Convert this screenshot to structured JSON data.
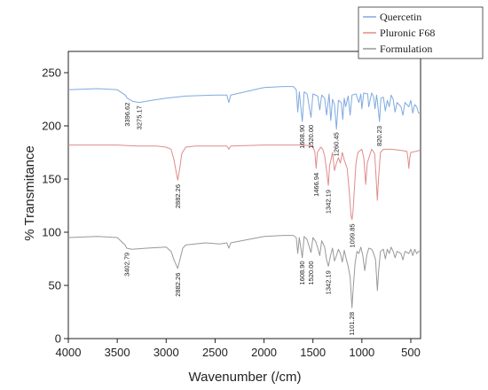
{
  "chart_data": {
    "type": "line",
    "title": "",
    "xlabel": "Wavenumber (/cm)",
    "ylabel": "% Transmitance",
    "xlim": [
      4000,
      400
    ],
    "ylim": [
      0,
      270
    ],
    "x_reversed": true,
    "grid": false,
    "legend_position": "top-right",
    "xticks": [
      4000,
      3500,
      3000,
      2500,
      2000,
      1500,
      1000,
      500
    ],
    "yticks": [
      0,
      50,
      100,
      150,
      200,
      250
    ],
    "series": [
      {
        "name": "Quercetin",
        "color": "#7faadf",
        "points": [
          [
            4000,
            234
          ],
          [
            3700,
            235
          ],
          [
            3500,
            234
          ],
          [
            3420,
            229
          ],
          [
            3396,
            226
          ],
          [
            3340,
            223
          ],
          [
            3275,
            222
          ],
          [
            3150,
            224
          ],
          [
            3000,
            226
          ],
          [
            2800,
            228
          ],
          [
            2500,
            229
          ],
          [
            2380,
            229
          ],
          [
            2360,
            222
          ],
          [
            2340,
            229
          ],
          [
            2000,
            236
          ],
          [
            1800,
            237
          ],
          [
            1700,
            237
          ],
          [
            1670,
            234
          ],
          [
            1655,
            213
          ],
          [
            1640,
            232
          ],
          [
            1609,
            204
          ],
          [
            1590,
            232
          ],
          [
            1560,
            230
          ],
          [
            1520,
            208
          ],
          [
            1500,
            230
          ],
          [
            1450,
            228
          ],
          [
            1430,
            215
          ],
          [
            1410,
            229
          ],
          [
            1380,
            226
          ],
          [
            1360,
            210
          ],
          [
            1335,
            230
          ],
          [
            1318,
            205
          ],
          [
            1300,
            225
          ],
          [
            1280,
            220
          ],
          [
            1260,
            197
          ],
          [
            1240,
            224
          ],
          [
            1210,
            222
          ],
          [
            1195,
            206
          ],
          [
            1180,
            226
          ],
          [
            1165,
            218
          ],
          [
            1140,
            228
          ],
          [
            1120,
            210
          ],
          [
            1100,
            229
          ],
          [
            1060,
            230
          ],
          [
            1030,
            222
          ],
          [
            1010,
            230
          ],
          [
            1000,
            216
          ],
          [
            980,
            231
          ],
          [
            940,
            230
          ],
          [
            930,
            218
          ],
          [
            900,
            231
          ],
          [
            880,
            227
          ],
          [
            865,
            216
          ],
          [
            850,
            229
          ],
          [
            840,
            222
          ],
          [
            820,
            204
          ],
          [
            805,
            226
          ],
          [
            780,
            227
          ],
          [
            760,
            214
          ],
          [
            740,
            224
          ],
          [
            720,
            218
          ],
          [
            700,
            229
          ],
          [
            680,
            225
          ],
          [
            660,
            213
          ],
          [
            640,
            222
          ],
          [
            600,
            218
          ],
          [
            580,
            210
          ],
          [
            560,
            222
          ],
          [
            520,
            218
          ],
          [
            500,
            224
          ],
          [
            480,
            212
          ],
          [
            460,
            220
          ],
          [
            440,
            218
          ],
          [
            420,
            212
          ],
          [
            410,
            212
          ]
        ]
      },
      {
        "name": "Pluronic F68",
        "color": "#e08b8b",
        "points": [
          [
            4000,
            182
          ],
          [
            3700,
            182
          ],
          [
            3500,
            182
          ],
          [
            3300,
            181
          ],
          [
            3100,
            181
          ],
          [
            3000,
            180
          ],
          [
            2950,
            178
          ],
          [
            2920,
            168
          ],
          [
            2900,
            158
          ],
          [
            2882,
            149
          ],
          [
            2865,
            158
          ],
          [
            2840,
            174
          ],
          [
            2800,
            180
          ],
          [
            2700,
            181
          ],
          [
            2500,
            181
          ],
          [
            2380,
            181
          ],
          [
            2360,
            178
          ],
          [
            2340,
            181
          ],
          [
            2000,
            182
          ],
          [
            1700,
            182
          ],
          [
            1600,
            182
          ],
          [
            1500,
            181
          ],
          [
            1480,
            175
          ],
          [
            1467,
            160
          ],
          [
            1455,
            175
          ],
          [
            1420,
            180
          ],
          [
            1400,
            178
          ],
          [
            1380,
            172
          ],
          [
            1360,
            158
          ],
          [
            1342,
            144
          ],
          [
            1330,
            162
          ],
          [
            1300,
            175
          ],
          [
            1280,
            158
          ],
          [
            1260,
            165
          ],
          [
            1240,
            170
          ],
          [
            1220,
            165
          ],
          [
            1200,
            175
          ],
          [
            1180,
            168
          ],
          [
            1150,
            160
          ],
          [
            1130,
            140
          ],
          [
            1110,
            115
          ],
          [
            1100,
            112
          ],
          [
            1090,
            120
          ],
          [
            1070,
            150
          ],
          [
            1060,
            165
          ],
          [
            1040,
            175
          ],
          [
            1000,
            178
          ],
          [
            980,
            170
          ],
          [
            960,
            145
          ],
          [
            945,
            165
          ],
          [
            900,
            178
          ],
          [
            870,
            174
          ],
          [
            860,
            160
          ],
          [
            842,
            130
          ],
          [
            830,
            150
          ],
          [
            810,
            175
          ],
          [
            780,
            178
          ],
          [
            700,
            178
          ],
          [
            600,
            177
          ],
          [
            540,
            176
          ],
          [
            530,
            170
          ],
          [
            520,
            160
          ],
          [
            510,
            170
          ],
          [
            500,
            175
          ],
          [
            450,
            176
          ],
          [
            410,
            177
          ]
        ]
      },
      {
        "name": "Formulation",
        "color": "#999999",
        "points": [
          [
            4000,
            95
          ],
          [
            3700,
            96
          ],
          [
            3500,
            95
          ],
          [
            3420,
            88
          ],
          [
            3403,
            85
          ],
          [
            3350,
            84
          ],
          [
            3200,
            85
          ],
          [
            3000,
            86
          ],
          [
            2950,
            82
          ],
          [
            2920,
            74
          ],
          [
            2882,
            66
          ],
          [
            2860,
            74
          ],
          [
            2830,
            85
          ],
          [
            2800,
            88
          ],
          [
            2600,
            90
          ],
          [
            2450,
            89
          ],
          [
            2380,
            90
          ],
          [
            2360,
            85
          ],
          [
            2340,
            90
          ],
          [
            2000,
            96
          ],
          [
            1800,
            97
          ],
          [
            1700,
            97
          ],
          [
            1670,
            95
          ],
          [
            1655,
            80
          ],
          [
            1640,
            95
          ],
          [
            1609,
            76
          ],
          [
            1590,
            96
          ],
          [
            1560,
            93
          ],
          [
            1520,
            81
          ],
          [
            1500,
            95
          ],
          [
            1470,
            91
          ],
          [
            1450,
            85
          ],
          [
            1430,
            78
          ],
          [
            1410,
            92
          ],
          [
            1380,
            86
          ],
          [
            1360,
            74
          ],
          [
            1342,
            68
          ],
          [
            1320,
            78
          ],
          [
            1300,
            85
          ],
          [
            1280,
            73
          ],
          [
            1260,
            78
          ],
          [
            1240,
            84
          ],
          [
            1220,
            80
          ],
          [
            1200,
            72
          ],
          [
            1180,
            83
          ],
          [
            1160,
            75
          ],
          [
            1140,
            68
          ],
          [
            1120,
            58
          ],
          [
            1101,
            29
          ],
          [
            1090,
            45
          ],
          [
            1070,
            70
          ],
          [
            1050,
            82
          ],
          [
            1030,
            80
          ],
          [
            1010,
            86
          ],
          [
            990,
            78
          ],
          [
            970,
            64
          ],
          [
            950,
            78
          ],
          [
            930,
            85
          ],
          [
            900,
            84
          ],
          [
            880,
            80
          ],
          [
            860,
            74
          ],
          [
            842,
            45
          ],
          [
            830,
            62
          ],
          [
            810,
            82
          ],
          [
            780,
            84
          ],
          [
            760,
            75
          ],
          [
            740,
            84
          ],
          [
            720,
            80
          ],
          [
            700,
            86
          ],
          [
            680,
            82
          ],
          [
            660,
            76
          ],
          [
            640,
            82
          ],
          [
            600,
            80
          ],
          [
            580,
            74
          ],
          [
            560,
            82
          ],
          [
            520,
            80
          ],
          [
            500,
            84
          ],
          [
            480,
            78
          ],
          [
            460,
            84
          ],
          [
            440,
            80
          ],
          [
            420,
            82
          ],
          [
            410,
            82
          ]
        ]
      }
    ],
    "annotations": [
      {
        "text": "3396.62",
        "x": 3396,
        "y": 222,
        "series": "Quercetin"
      },
      {
        "text": "3275.17",
        "x": 3275,
        "y": 219,
        "series": "Quercetin"
      },
      {
        "text": "1608.90",
        "x": 1609,
        "y": 201,
        "series": "Quercetin"
      },
      {
        "text": "1520.00",
        "x": 1520,
        "y": 201,
        "series": "Quercetin"
      },
      {
        "text": "1260.45",
        "x": 1260,
        "y": 194,
        "series": "Quercetin"
      },
      {
        "text": "820.23",
        "x": 820,
        "y": 200,
        "series": "Quercetin"
      },
      {
        "text": "2882.26",
        "x": 2882,
        "y": 145,
        "series": "Pluronic F68"
      },
      {
        "text": "1466.94",
        "x": 1467,
        "y": 156,
        "series": "Pluronic F68"
      },
      {
        "text": "1342.19",
        "x": 1342,
        "y": 140,
        "series": "Pluronic F68"
      },
      {
        "text": "1099.85",
        "x": 1100,
        "y": 108,
        "series": "Pluronic F68"
      },
      {
        "text": "3402.79",
        "x": 3403,
        "y": 81,
        "series": "Formulation"
      },
      {
        "text": "2882.26",
        "x": 2882,
        "y": 62,
        "series": "Formulation"
      },
      {
        "text": "1608.90",
        "x": 1609,
        "y": 73,
        "series": "Formulation"
      },
      {
        "text": "1520.00",
        "x": 1520,
        "y": 73,
        "series": "Formulation"
      },
      {
        "text": "1342.19",
        "x": 1342,
        "y": 64,
        "series": "Formulation"
      },
      {
        "text": "1101.28",
        "x": 1101,
        "y": 25,
        "series": "Formulation"
      }
    ]
  }
}
